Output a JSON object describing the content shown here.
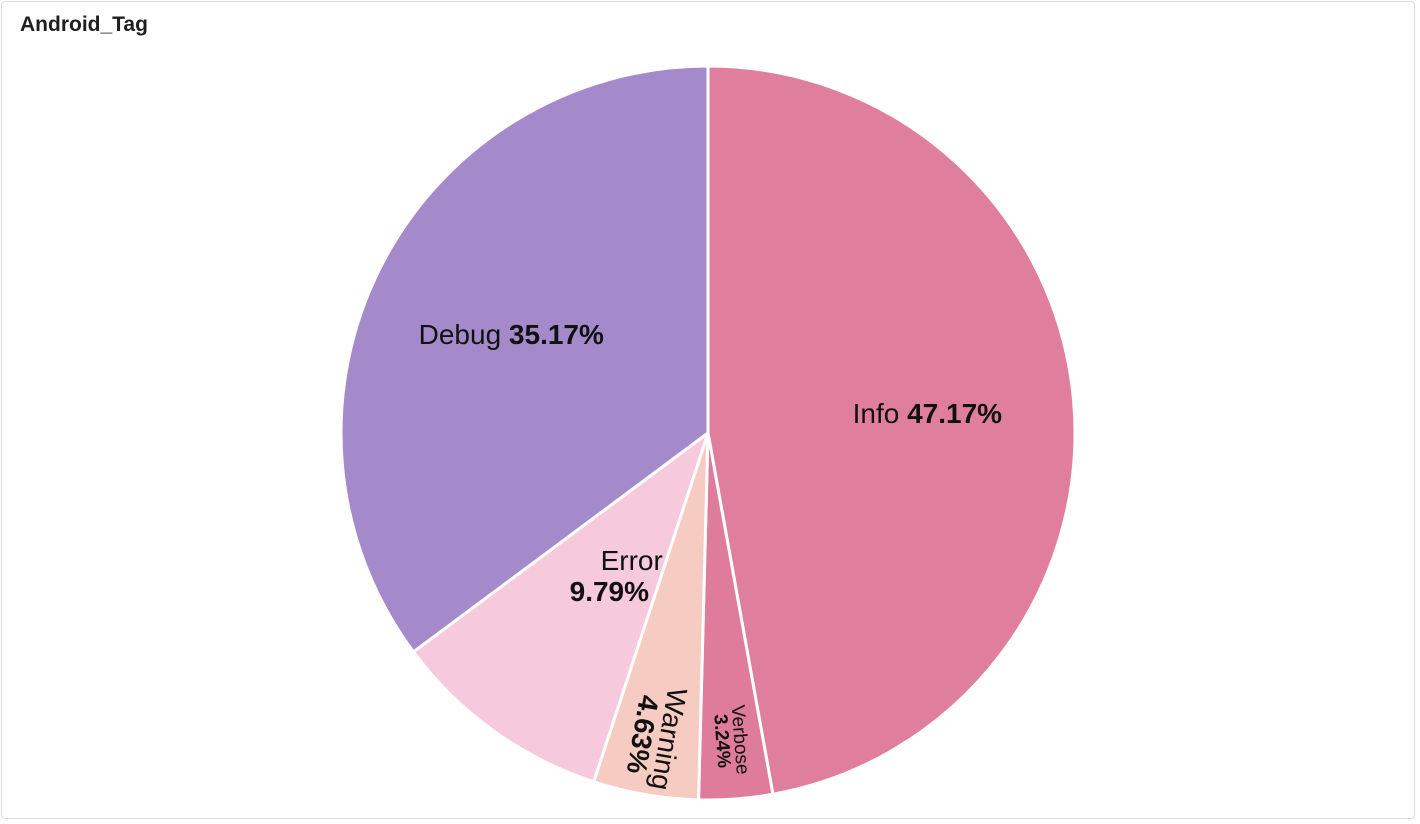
{
  "panel": {
    "title": "Android_Tag"
  },
  "chart_data": {
    "type": "pie",
    "title": "Android_Tag",
    "start_angle_deg": 0,
    "direction": "clockwise",
    "slices": [
      {
        "label": "Info",
        "value": 47.17,
        "value_label": "47.17%",
        "color": "#e07f9d",
        "label_layout": "inline",
        "font_size": 28
      },
      {
        "label": "Verbose",
        "value": 3.24,
        "value_label": "3.24%",
        "color": "#df7b9b",
        "label_layout": "radial",
        "font_size": 19
      },
      {
        "label": "Warning",
        "value": 4.63,
        "value_label": "4.63%",
        "color": "#f6cbc2",
        "label_layout": "radial",
        "font_size": 28
      },
      {
        "label": "Error",
        "value": 9.79,
        "value_label": "9.79%",
        "color": "#f6c9dc",
        "label_layout": "stacked",
        "font_size": 28
      },
      {
        "label": "Debug",
        "value": 35.17,
        "value_label": "35.17%",
        "color": "#a48acb",
        "label_layout": "inline",
        "font_size": 28
      }
    ]
  }
}
